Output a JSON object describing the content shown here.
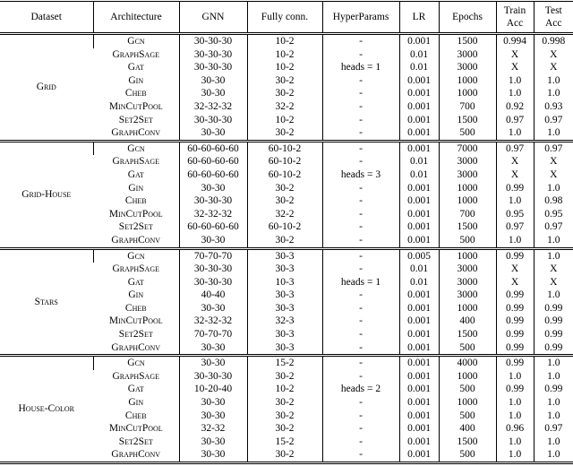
{
  "table": {
    "header": [
      "Dataset",
      "Architecture",
      "GNN",
      "Fully conn.",
      "HyperParams",
      "LR",
      "Epochs",
      "Train Acc",
      "Test Acc"
    ],
    "groups": [
      {
        "dataset": "Grid",
        "rows": [
          [
            "Gcn",
            "30-30-30",
            "10-2",
            "-",
            "0.001",
            "1500",
            "0.994",
            "0.998"
          ],
          [
            "GraphSage",
            "30-30-30",
            "10-2",
            "-",
            "0.01",
            "3000",
            "X",
            "X"
          ],
          [
            "Gat",
            "30-30-30",
            "10-2",
            "heads = 1",
            "0.01",
            "3000",
            "X",
            "X"
          ],
          [
            "Gin",
            "30-30",
            "30-2",
            "-",
            "0.001",
            "1000",
            "1.0",
            "1.0"
          ],
          [
            "Cheb",
            "30-30",
            "30-2",
            "-",
            "0.001",
            "1000",
            "1.0",
            "1.0"
          ],
          [
            "MinCutPool",
            "32-32-32",
            "32-2",
            "-",
            "0.001",
            "700",
            "0.92",
            "0.93"
          ],
          [
            "Set2Set",
            "30-30-30",
            "10-2",
            "-",
            "0.001",
            "1500",
            "0.97",
            "0.97"
          ],
          [
            "GraphConv",
            "30-30",
            "30-2",
            "-",
            "0.001",
            "500",
            "1.0",
            "1.0"
          ]
        ]
      },
      {
        "dataset": "Grid-House",
        "rows": [
          [
            "Gcn",
            "60-60-60-60",
            "60-10-2",
            "-",
            "0.001",
            "7000",
            "0.97",
            "0.97"
          ],
          [
            "GraphSage",
            "60-60-60-60",
            "60-10-2",
            "-",
            "0.01",
            "3000",
            "X",
            "X"
          ],
          [
            "Gat",
            "60-60-60-60",
            "60-10-2",
            "heads = 3",
            "0.01",
            "3000",
            "X",
            "X"
          ],
          [
            "Gin",
            "30-30",
            "30-2",
            "-",
            "0.001",
            "1000",
            "0.99",
            "1.0"
          ],
          [
            "Cheb",
            "30-30-30",
            "30-2",
            "-",
            "0.001",
            "1000",
            "1.0",
            "0.98"
          ],
          [
            "MinCutPool",
            "32-32-32",
            "32-2",
            "-",
            "0.001",
            "700",
            "0.95",
            "0.95"
          ],
          [
            "Set2Set",
            "60-60-60-60",
            "60-10-2",
            "-",
            "0.001",
            "1500",
            "0.97",
            "0.97"
          ],
          [
            "GraphConv",
            "30-30",
            "30-2",
            "-",
            "0.001",
            "500",
            "1.0",
            "1.0"
          ]
        ]
      },
      {
        "dataset": "Stars",
        "rows": [
          [
            "Gcn",
            "70-70-70",
            "30-3",
            "-",
            "0.005",
            "1000",
            "0.99",
            "1.0"
          ],
          [
            "GraphSage",
            "30-30-30",
            "30-3",
            "-",
            "0.01",
            "3000",
            "X",
            "X"
          ],
          [
            "Gat",
            "30-30-30",
            "10-3",
            "heads = 1",
            "0.01",
            "3000",
            "X",
            "X"
          ],
          [
            "Gin",
            "40-40",
            "30-3",
            "-",
            "0.001",
            "3000",
            "0.99",
            "1.0"
          ],
          [
            "Cheb",
            "30-30",
            "30-3",
            "-",
            "0.001",
            "1000",
            "0.99",
            "0.99"
          ],
          [
            "MinCutPool",
            "32-32-32",
            "32-3",
            "-",
            "0.001",
            "400",
            "0.99",
            "0.99"
          ],
          [
            "Set2Set",
            "70-70-70",
            "30-3",
            "-",
            "0.001",
            "1500",
            "0.99",
            "0.99"
          ],
          [
            "GraphConv",
            "30-30",
            "30-3",
            "-",
            "0.001",
            "500",
            "0.99",
            "0.99"
          ]
        ]
      },
      {
        "dataset": "House-Color",
        "rows": [
          [
            "Gcn",
            "30-30",
            "15-2",
            "-",
            "0.001",
            "4000",
            "0.99",
            "1.0"
          ],
          [
            "GraphSage",
            "30-30-30",
            "30-2",
            "-",
            "0.001",
            "1000",
            "1.0",
            "1.0"
          ],
          [
            "Gat",
            "10-20-40",
            "10-2",
            "heads = 2",
            "0.001",
            "500",
            "0.99",
            "0.99"
          ],
          [
            "Gin",
            "30-30",
            "30-2",
            "-",
            "0.001",
            "1000",
            "1.0",
            "1.0"
          ],
          [
            "Cheb",
            "30-30",
            "30-2",
            "-",
            "0.001",
            "500",
            "1.0",
            "1.0"
          ],
          [
            "MinCutPool",
            "32-32",
            "30-2",
            "-",
            "0.001",
            "400",
            "0.96",
            "0.97"
          ],
          [
            "Set2Set",
            "30-30",
            "15-2",
            "-",
            "0.001",
            "1500",
            "1.0",
            "1.0"
          ],
          [
            "GraphConv",
            "30-30",
            "30-2",
            "-",
            "0.001",
            "500",
            "1.0",
            "1.0"
          ]
        ]
      }
    ]
  }
}
